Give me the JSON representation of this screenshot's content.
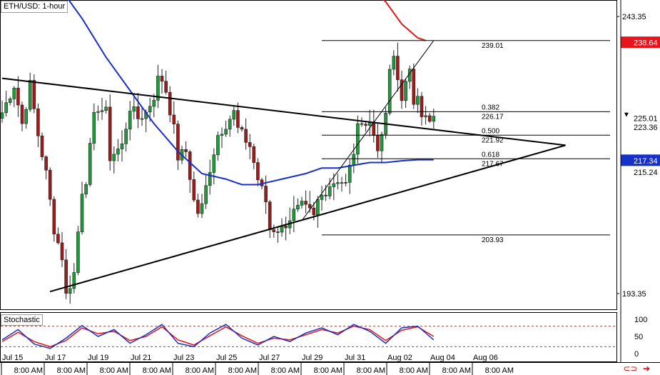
{
  "header": {
    "title": "ETH/USD: 1-hour"
  },
  "stochastic_panel": {
    "title": "Stochastic"
  },
  "price_badges": [
    {
      "value": "238.64",
      "bg": "#e8141c",
      "fg": "#ffffff"
    },
    {
      "value": "225.01",
      "bg": "#ffffff",
      "fg": "#000000",
      "marker": true
    },
    {
      "value": "223.36",
      "bg": "#ffffff",
      "fg": "#000000"
    },
    {
      "value": "217.34",
      "bg": "#1631c8",
      "fg": "#ffffff"
    },
    {
      "value": "215.24",
      "bg": "#ffffff",
      "fg": "#000000"
    }
  ],
  "fib": {
    "high": "239.01",
    "low": "203.93",
    "levels": [
      {
        "ratio": "0.382",
        "price": "226.17"
      },
      {
        "ratio": "0.500",
        "price": "221.92"
      },
      {
        "ratio": "0.618",
        "price": "217.67"
      }
    ]
  },
  "colors": {
    "up_candle": "#1f9b3a",
    "down_candle": "#9e1b1b",
    "ma_fast": "#1a2fc9",
    "ma_slow": "#e01818",
    "stoch_k": "#1a2fc9",
    "stoch_d": "#e01818",
    "stoch_levels": "#c0392b"
  },
  "icons": [
    "link-icon",
    "arrow-right-icon"
  ],
  "chart_data": {
    "type": "candlestick",
    "y_ticks": [
      "243.35",
      "193.35"
    ],
    "x_ticks": [
      "Jul 15",
      "Jul 17",
      "Jul 19",
      "Jul 21",
      "Jul 23",
      "Jul 25",
      "Jul 27",
      "Jul 29",
      "Jul 31",
      "Aug 02",
      "Aug 04",
      "Aug 06"
    ],
    "x_sub_labels": [
      "8:00 AM",
      "8:00 AM",
      "8:00 AM",
      "8:00 AM",
      "8:00 AM",
      "8:00 AM",
      "8:00 AM",
      "8:00 AM",
      "8:00 AM",
      "8:00 AM",
      "8:00 AM",
      "8:00 AM"
    ],
    "ylim": [
      190.5,
      246.2
    ],
    "close_path": [
      [
        0,
        226
      ],
      [
        3,
        231
      ],
      [
        5,
        224
      ],
      [
        7,
        231
      ],
      [
        9,
        222
      ],
      [
        11,
        215
      ],
      [
        13,
        205
      ],
      [
        15,
        200
      ],
      [
        16,
        193
      ],
      [
        18,
        197
      ],
      [
        20,
        212
      ],
      [
        21,
        214
      ],
      [
        23,
        225
      ],
      [
        24,
        227
      ],
      [
        26,
        226
      ],
      [
        27,
        218
      ],
      [
        30,
        220
      ],
      [
        32,
        227
      ],
      [
        34,
        225
      ],
      [
        36,
        226
      ],
      [
        38,
        229
      ],
      [
        39,
        232
      ],
      [
        40,
        232
      ],
      [
        41,
        230
      ],
      [
        43,
        223
      ],
      [
        44,
        218
      ],
      [
        46,
        219
      ],
      [
        48,
        210
      ],
      [
        49,
        208
      ],
      [
        50,
        209
      ],
      [
        52,
        216
      ],
      [
        54,
        222
      ],
      [
        56,
        224
      ],
      [
        58,
        226
      ],
      [
        59,
        223
      ],
      [
        60,
        222
      ],
      [
        62,
        220
      ],
      [
        64,
        214
      ],
      [
        66,
        210
      ],
      [
        67,
        205
      ],
      [
        68,
        205
      ],
      [
        70,
        205
      ],
      [
        71,
        206
      ],
      [
        73,
        208
      ],
      [
        75,
        209
      ],
      [
        77,
        208
      ],
      [
        78,
        207
      ],
      [
        79,
        210
      ],
      [
        80,
        211
      ],
      [
        82,
        213
      ],
      [
        84,
        214
      ],
      [
        86,
        213
      ],
      [
        88,
        219
      ],
      [
        89,
        223
      ],
      [
        90,
        225
      ],
      [
        91,
        224
      ],
      [
        92,
        224
      ],
      [
        93,
        222
      ],
      [
        94,
        220
      ],
      [
        95,
        221
      ],
      [
        96,
        226
      ],
      [
        97,
        233
      ],
      [
        98,
        236
      ],
      [
        99,
        232
      ],
      [
        100,
        229
      ],
      [
        101,
        231
      ],
      [
        102,
        233
      ],
      [
        103,
        228
      ],
      [
        104,
        230
      ],
      [
        105,
        226
      ],
      [
        106,
        225
      ],
      [
        107,
        224
      ],
      [
        108,
        225
      ]
    ],
    "ma_fast": [
      [
        14,
        249
      ],
      [
        20,
        243
      ],
      [
        26,
        236
      ],
      [
        32,
        230
      ],
      [
        38,
        224
      ],
      [
        44,
        219
      ],
      [
        50,
        215
      ],
      [
        56,
        214
      ],
      [
        60,
        213
      ],
      [
        64,
        213
      ],
      [
        70,
        214
      ],
      [
        76,
        215
      ],
      [
        80,
        216
      ],
      [
        84,
        216
      ],
      [
        88,
        216.5
      ],
      [
        92,
        217
      ],
      [
        96,
        217
      ],
      [
        100,
        217.3
      ],
      [
        104,
        217.5
      ],
      [
        108,
        217.5
      ]
    ],
    "ma_slow": [
      [
        90,
        250
      ],
      [
        96,
        246
      ],
      [
        100,
        242
      ],
      [
        104,
        239.5
      ],
      [
        106,
        239
      ]
    ],
    "trendlines": [
      {
        "name": "triangle-upper",
        "from": [
          0,
          232.2
        ],
        "to": [
          141,
          220.1
        ]
      },
      {
        "name": "triangle-lower",
        "from": [
          12,
          193.7
        ],
        "to": [
          141,
          220.1
        ]
      },
      {
        "name": "channel",
        "from": [
          75,
          206.5
        ],
        "to": [
          108,
          239
        ]
      }
    ],
    "fib_lines": [
      239.01,
      226.17,
      221.92,
      217.67,
      203.93
    ],
    "stochastic": {
      "ylim": [
        0,
        100
      ],
      "y_ticks": [
        "100",
        "50",
        "0"
      ],
      "levels": [
        80,
        20
      ],
      "k": [
        [
          0,
          40
        ],
        [
          4,
          70
        ],
        [
          8,
          28
        ],
        [
          12,
          15
        ],
        [
          16,
          45
        ],
        [
          20,
          82
        ],
        [
          24,
          50
        ],
        [
          28,
          70
        ],
        [
          32,
          30
        ],
        [
          36,
          55
        ],
        [
          40,
          85
        ],
        [
          44,
          30
        ],
        [
          48,
          20
        ],
        [
          52,
          60
        ],
        [
          56,
          85
        ],
        [
          60,
          45
        ],
        [
          64,
          25
        ],
        [
          68,
          50
        ],
        [
          72,
          35
        ],
        [
          76,
          60
        ],
        [
          80,
          75
        ],
        [
          84,
          55
        ],
        [
          88,
          85
        ],
        [
          92,
          65
        ],
        [
          96,
          30
        ],
        [
          100,
          75
        ],
        [
          104,
          80
        ],
        [
          108,
          40
        ]
      ],
      "d": [
        [
          0,
          35
        ],
        [
          4,
          62
        ],
        [
          8,
          35
        ],
        [
          12,
          20
        ],
        [
          16,
          38
        ],
        [
          20,
          75
        ],
        [
          24,
          58
        ],
        [
          28,
          65
        ],
        [
          32,
          38
        ],
        [
          36,
          50
        ],
        [
          40,
          78
        ],
        [
          44,
          40
        ],
        [
          48,
          25
        ],
        [
          52,
          52
        ],
        [
          56,
          78
        ],
        [
          60,
          52
        ],
        [
          64,
          30
        ],
        [
          68,
          45
        ],
        [
          72,
          40
        ],
        [
          76,
          55
        ],
        [
          80,
          70
        ],
        [
          84,
          60
        ],
        [
          88,
          80
        ],
        [
          92,
          70
        ],
        [
          96,
          38
        ],
        [
          100,
          68
        ],
        [
          104,
          78
        ],
        [
          108,
          50
        ]
      ]
    }
  }
}
